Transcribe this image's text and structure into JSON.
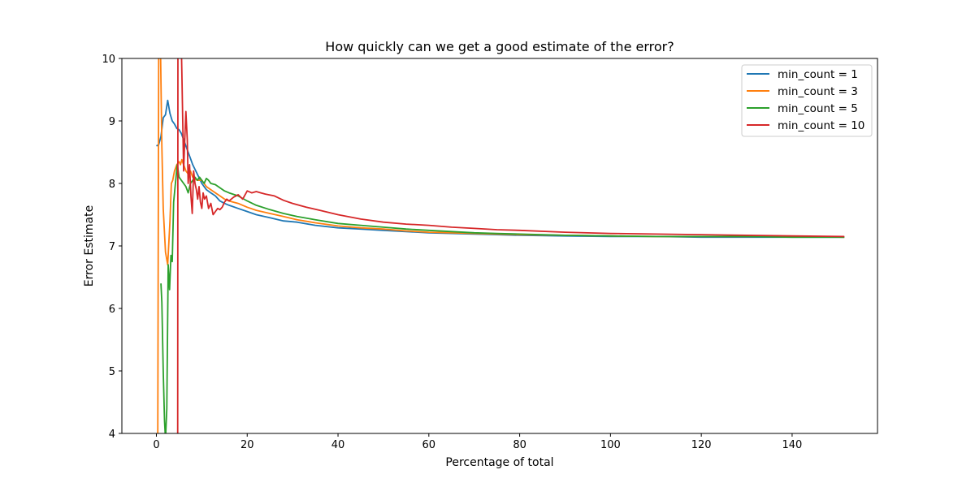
{
  "chart_data": {
    "type": "line",
    "title": "How quickly can we get a good estimate of the error?",
    "xlabel": "Percentage of total",
    "ylabel": "Error Estimate",
    "xlim": [
      -7.6,
      158.8
    ],
    "ylim": [
      4,
      10
    ],
    "xticks": [
      0,
      20,
      40,
      60,
      80,
      100,
      120,
      140
    ],
    "yticks": [
      4,
      5,
      6,
      7,
      8,
      9,
      10
    ],
    "grid": false,
    "legend_position": "top-right",
    "series": [
      {
        "name": "min_count = 1",
        "color": "#1f77b4",
        "x": [
          0.0,
          0.5,
          1.0,
          1.5,
          2.0,
          2.5,
          3.0,
          3.5,
          4.0,
          4.5,
          5.0,
          5.5,
          6.0,
          6.5,
          7.0,
          7.5,
          8.0,
          9.0,
          10.0,
          11.0,
          12.0,
          13.0,
          14.0,
          15.0,
          16.0,
          18.0,
          20.0,
          22.0,
          25.0,
          28.0,
          31.0,
          35.0,
          40.0,
          45.0,
          50.0,
          55.0,
          60.0,
          65.0,
          70.0,
          75.0,
          80.0,
          90.0,
          100.0,
          110.0,
          120.0,
          130.0,
          140.0,
          151.5
        ],
        "y": [
          8.6,
          8.62,
          8.75,
          9.05,
          9.1,
          9.33,
          9.12,
          9.0,
          8.95,
          8.88,
          8.86,
          8.8,
          8.7,
          8.6,
          8.5,
          8.4,
          8.3,
          8.15,
          8.0,
          7.9,
          7.85,
          7.8,
          7.72,
          7.68,
          7.65,
          7.6,
          7.55,
          7.5,
          7.45,
          7.4,
          7.38,
          7.33,
          7.29,
          7.27,
          7.25,
          7.23,
          7.21,
          7.2,
          7.19,
          7.18,
          7.17,
          7.16,
          7.15,
          7.15,
          7.14,
          7.14,
          7.14,
          7.14
        ]
      },
      {
        "name": "min_count = 3",
        "color": "#ff7f0e",
        "x": [
          0.3,
          0.5,
          0.7,
          0.9,
          1.2,
          1.5,
          2.0,
          2.5,
          3.0,
          3.3,
          3.6,
          4.0,
          4.5,
          5.0,
          5.3,
          5.6,
          6.0,
          6.5,
          7.0,
          7.5,
          8.0,
          9.0,
          10.0,
          11.0,
          12.0,
          13.0,
          14.0,
          15.0,
          16.0,
          18.0,
          20.0,
          22.0,
          25.0,
          28.0,
          31.0,
          35.0,
          40.0,
          45.0,
          50.0,
          55.0,
          60.0,
          65.0,
          70.0,
          75.0,
          80.0,
          90.0,
          100.0,
          110.0,
          120.0,
          130.0,
          140.0,
          151.5
        ],
        "y": [
          4.0,
          10.0,
          10.4,
          10.2,
          8.6,
          7.6,
          6.9,
          6.7,
          7.4,
          8.0,
          8.05,
          8.2,
          8.3,
          8.35,
          8.3,
          8.38,
          8.3,
          8.2,
          8.15,
          8.2,
          8.1,
          8.05,
          8.05,
          7.95,
          7.9,
          7.85,
          7.8,
          7.75,
          7.72,
          7.68,
          7.62,
          7.57,
          7.52,
          7.47,
          7.42,
          7.37,
          7.32,
          7.29,
          7.27,
          7.24,
          7.22,
          7.21,
          7.2,
          7.19,
          7.18,
          7.17,
          7.16,
          7.15,
          7.15,
          7.15,
          7.15,
          7.14
        ]
      },
      {
        "name": "min_count = 5",
        "color": "#2ca02c",
        "x": [
          1.0,
          1.2,
          1.5,
          1.8,
          2.0,
          2.3,
          2.6,
          2.9,
          3.2,
          3.5,
          3.8,
          4.2,
          4.6,
          5.0,
          5.5,
          6.0,
          6.5,
          7.0,
          7.5,
          8.0,
          8.5,
          9.0,
          9.5,
          10.0,
          10.5,
          11.0,
          11.5,
          12.0,
          13.0,
          14.0,
          15.0,
          16.0,
          18.0,
          20.0,
          22.0,
          25.0,
          28.0,
          31.0,
          35.0,
          40.0,
          45.0,
          50.0,
          55.0,
          60.0,
          65.0,
          70.0,
          75.0,
          80.0,
          90.0,
          100.0,
          110.0,
          120.0,
          130.0,
          140.0,
          151.5
        ],
        "y": [
          6.4,
          6.1,
          5.0,
          4.2,
          3.9,
          4.4,
          6.7,
          6.3,
          6.85,
          6.75,
          7.7,
          8.0,
          8.3,
          8.1,
          8.05,
          8.0,
          7.95,
          7.85,
          8.0,
          8.05,
          8.1,
          8.05,
          8.1,
          8.05,
          8.0,
          8.08,
          8.05,
          8.0,
          7.98,
          7.93,
          7.88,
          7.85,
          7.8,
          7.72,
          7.65,
          7.58,
          7.52,
          7.47,
          7.42,
          7.36,
          7.33,
          7.3,
          7.27,
          7.25,
          7.23,
          7.21,
          7.2,
          7.19,
          7.17,
          7.16,
          7.15,
          7.15,
          7.15,
          7.14,
          7.14
        ]
      },
      {
        "name": "min_count = 10",
        "color": "#d62728",
        "x": [
          4.7,
          4.75,
          5.0,
          5.2,
          5.4,
          5.6,
          5.8,
          6.0,
          6.2,
          6.5,
          6.8,
          7.0,
          7.3,
          7.6,
          7.9,
          8.2,
          8.5,
          8.8,
          9.1,
          9.4,
          9.7,
          10.0,
          10.3,
          10.6,
          11.0,
          11.5,
          12.0,
          12.5,
          13.0,
          13.5,
          14.0,
          14.5,
          15.0,
          15.5,
          16.0,
          17.0,
          18.0,
          19.0,
          20.0,
          21.0,
          22.0,
          23.0,
          24.0,
          26.0,
          28.0,
          30.0,
          33.0,
          36.0,
          40.0,
          45.0,
          50.0,
          55.0,
          60.0,
          65.0,
          70.0,
          75.0,
          80.0,
          90.0,
          100.0,
          110.0,
          120.0,
          130.0,
          140.0,
          151.5
        ],
        "y": [
          3.9,
          10.4,
          10.6,
          10.1,
          10.5,
          9.8,
          9.0,
          8.2,
          8.6,
          9.15,
          8.7,
          8.0,
          8.3,
          7.8,
          7.52,
          8.2,
          8.0,
          7.9,
          7.75,
          7.95,
          7.7,
          7.6,
          7.85,
          7.75,
          7.8,
          7.6,
          7.68,
          7.5,
          7.55,
          7.6,
          7.58,
          7.62,
          7.7,
          7.75,
          7.72,
          7.78,
          7.82,
          7.75,
          7.88,
          7.85,
          7.87,
          7.85,
          7.83,
          7.8,
          7.73,
          7.68,
          7.62,
          7.57,
          7.5,
          7.43,
          7.38,
          7.35,
          7.33,
          7.3,
          7.28,
          7.26,
          7.25,
          7.22,
          7.2,
          7.19,
          7.18,
          7.17,
          7.16,
          7.15
        ]
      }
    ]
  }
}
